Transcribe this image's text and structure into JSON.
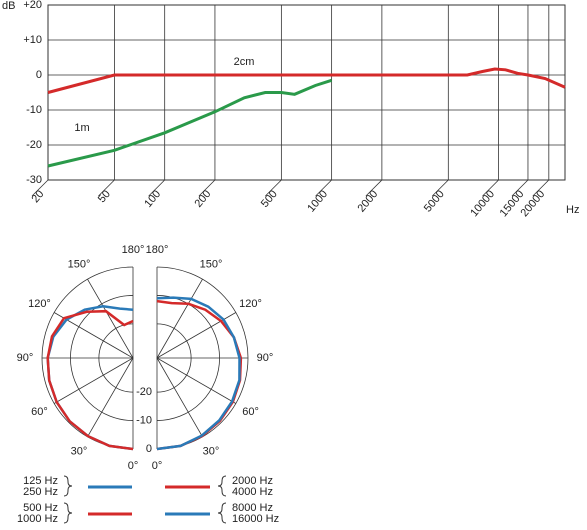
{
  "chart_data": [
    {
      "type": "line",
      "xscale": "log",
      "xlim": [
        20,
        25000
      ],
      "ylim": [
        -30,
        20
      ],
      "xticks": [
        20,
        50,
        100,
        200,
        500,
        1000,
        2000,
        5000,
        10000,
        15000,
        20000
      ],
      "yticks": [
        {
          "value": 20,
          "label": "+20"
        },
        {
          "value": 10,
          "label": "+10"
        },
        0,
        -10,
        -20,
        -30
      ],
      "ylabel": "dB",
      "xlabel": "Hz",
      "grid": true,
      "series": [
        {
          "name": "2cm",
          "color": "#d42a2a",
          "x": [
            20,
            50,
            1000,
            6500,
            8000,
            9500,
            11000,
            13000,
            15000,
            19000,
            25000
          ],
          "values": [
            -5,
            0,
            0,
            0,
            1,
            1.7,
            1.5,
            0.5,
            0,
            -1,
            -3.5
          ]
        },
        {
          "name": "1m",
          "color": "#2a9a4a",
          "x": [
            20,
            50,
            100,
            200,
            300,
            400,
            500,
            600,
            800,
            1000
          ],
          "values": [
            -26,
            -21.5,
            -16.5,
            -10.5,
            -6.5,
            -5,
            -5,
            -5.5,
            -3,
            -1.5
          ]
        }
      ]
    },
    {
      "type": "polar",
      "rlim": [
        -32,
        0
      ],
      "rticks": [
        -20,
        -10,
        0
      ],
      "angleticks": [
        {
          "value": 0,
          "label": "0°"
        },
        {
          "value": 30,
          "label": "30°"
        },
        {
          "value": 60,
          "label": "60°"
        },
        {
          "value": 90,
          "label": "90°"
        },
        {
          "value": 120,
          "label": "120°"
        },
        {
          "value": 150,
          "label": "150°"
        },
        {
          "value": 180,
          "label": "180°"
        }
      ],
      "theta": [
        0,
        15,
        30,
        45,
        60,
        75,
        90,
        105,
        120,
        135,
        150,
        165,
        180
      ],
      "series": [
        {
          "labels": [
            "125 Hz",
            "250 Hz"
          ],
          "color": "#2a7ab8",
          "side": "left",
          "values": [
            0,
            0,
            -0.3,
            -0.5,
            -1,
            -1.5,
            -2,
            -3,
            -5,
            -8,
            -11,
            -14,
            -15
          ]
        },
        {
          "labels": [
            "500 Hz",
            "1000 Hz"
          ],
          "color": "#d42a2a",
          "side": "left",
          "values": [
            0,
            0,
            -0.3,
            -0.5,
            -1,
            -1.5,
            -2,
            -2.5,
            -4,
            -9,
            -13,
            -20,
            -19
          ]
        },
        {
          "labels": [
            "2000 Hz",
            "4000 Hz"
          ],
          "color": "#d42a2a",
          "side": "right",
          "values": [
            0,
            0,
            -0.3,
            -0.7,
            -1.2,
            -1.8,
            -2.5,
            -4,
            -6,
            -8,
            -10,
            -12,
            -12
          ]
        },
        {
          "labels": [
            "8000 Hz",
            "16000 Hz"
          ],
          "color": "#2a7ab8",
          "side": "right",
          "values": [
            0,
            0,
            -0.5,
            -1,
            -1.5,
            -2,
            -3,
            -4,
            -5,
            -6.5,
            -8,
            -10,
            -11
          ]
        }
      ]
    }
  ]
}
